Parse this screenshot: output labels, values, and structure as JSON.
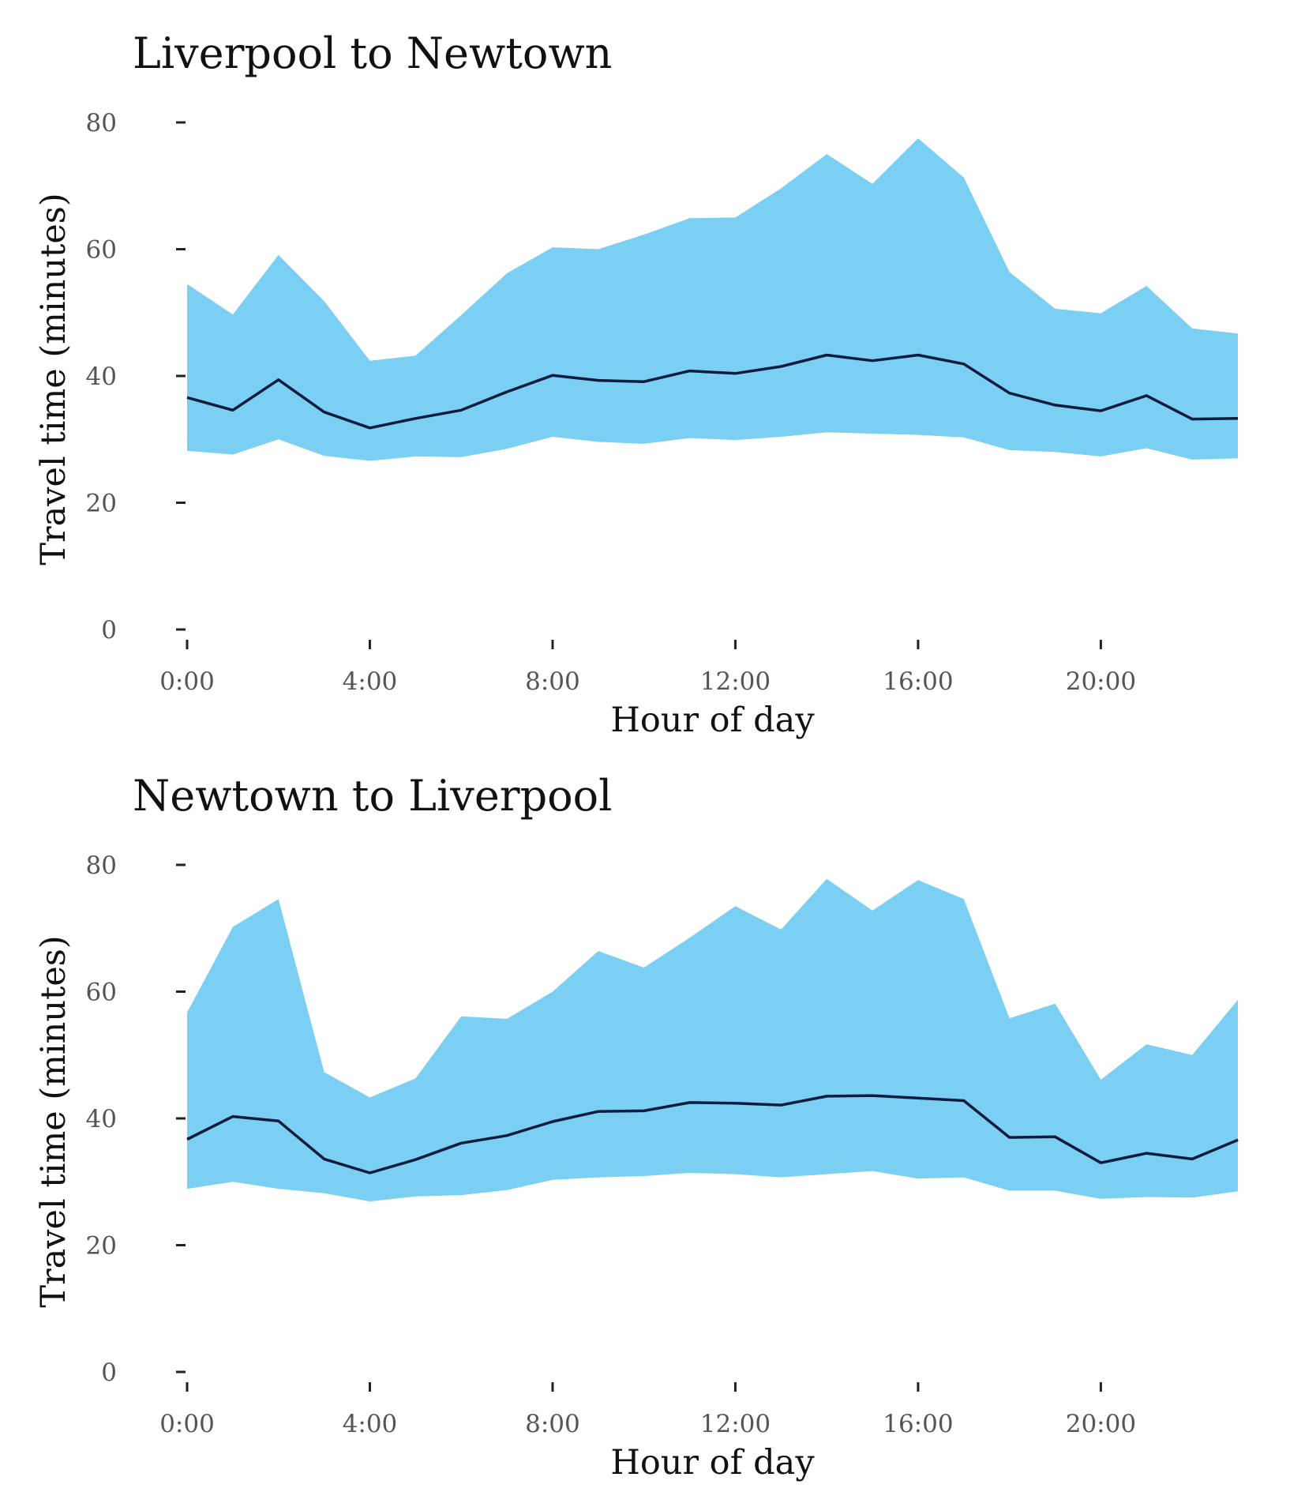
{
  "chart_data": [
    {
      "type": "area",
      "title": "Liverpool to Newtown",
      "xlabel": "Hour of day",
      "ylabel": "Travel time (minutes)",
      "xlim": [
        0,
        23
      ],
      "ylim": [
        0,
        80
      ],
      "x_ticks": [
        0,
        4,
        8,
        12,
        16,
        20
      ],
      "x_tick_labels": [
        "0:00",
        "4:00",
        "8:00",
        "12:00",
        "16:00",
        "20:00"
      ],
      "y_ticks": [
        0,
        20,
        40,
        60,
        80
      ],
      "y_tick_labels": [
        "0",
        "20",
        "40",
        "60",
        "80"
      ],
      "grid": false,
      "colors": {
        "band": "#7acff2",
        "line": "#0d1b3e"
      },
      "x": [
        0,
        1,
        2,
        3,
        4,
        5,
        6,
        7,
        8,
        9,
        10,
        11,
        12,
        13,
        14,
        15,
        16,
        17,
        18,
        19,
        20,
        21,
        22,
        23
      ],
      "series": [
        {
          "values": [
            36.6,
            34.6,
            39.4,
            34.3,
            31.8,
            33.3,
            34.6,
            37.5,
            40.1,
            39.3,
            39.1,
            40.8,
            40.4,
            41.5,
            43.3,
            42.4,
            43.3,
            41.9,
            37.3,
            35.4,
            34.5,
            36.9,
            33.2,
            33.3
          ]
        }
      ],
      "band_upper": [
        54.5,
        49.7,
        59.1,
        51.8,
        42.4,
        43.2,
        49.6,
        56.2,
        60.3,
        60.0,
        62.3,
        64.9,
        65.0,
        69.6,
        75.0,
        70.3,
        77.5,
        71.3,
        56.4,
        50.6,
        49.9,
        54.2,
        47.5,
        46.7
      ],
      "band_lower": [
        28.2,
        27.6,
        30.0,
        27.4,
        26.6,
        27.3,
        27.2,
        28.5,
        30.4,
        29.6,
        29.3,
        30.2,
        29.9,
        30.4,
        31.1,
        30.9,
        30.7,
        30.3,
        28.3,
        28.0,
        27.3,
        28.6,
        26.8,
        27.0
      ]
    },
    {
      "type": "area",
      "title": "Newtown to Liverpool",
      "xlabel": "Hour of day",
      "ylabel": "Travel time (minutes)",
      "xlim": [
        0,
        23
      ],
      "ylim": [
        0,
        80
      ],
      "x_ticks": [
        0,
        4,
        8,
        12,
        16,
        20
      ],
      "x_tick_labels": [
        "0:00",
        "4:00",
        "8:00",
        "12:00",
        "16:00",
        "20:00"
      ],
      "y_ticks": [
        0,
        20,
        40,
        60,
        80
      ],
      "y_tick_labels": [
        "0",
        "20",
        "40",
        "60",
        "80"
      ],
      "grid": false,
      "colors": {
        "band": "#7acff2",
        "line": "#0d1b3e"
      },
      "x": [
        0,
        1,
        2,
        3,
        4,
        5,
        6,
        7,
        8,
        9,
        10,
        11,
        12,
        13,
        14,
        15,
        16,
        17,
        18,
        19,
        20,
        21,
        22,
        23
      ],
      "series": [
        {
          "values": [
            36.7,
            40.3,
            39.6,
            33.6,
            31.4,
            33.5,
            36.1,
            37.3,
            39.5,
            41.1,
            41.2,
            42.5,
            42.4,
            42.1,
            43.5,
            43.6,
            43.2,
            42.8,
            37.0,
            37.1,
            33.0,
            34.5,
            33.6,
            36.6
          ]
        }
      ],
      "band_upper": [
        56.7,
        70.2,
        74.6,
        47.3,
        43.3,
        46.3,
        56.1,
        55.7,
        60.0,
        66.4,
        63.8,
        68.5,
        73.5,
        69.8,
        77.8,
        72.8,
        77.6,
        74.6,
        55.8,
        58.1,
        46.1,
        51.7,
        50.0,
        58.7
      ],
      "band_lower": [
        28.9,
        30.0,
        28.9,
        28.2,
        26.9,
        27.7,
        27.9,
        28.7,
        30.3,
        30.7,
        30.9,
        31.4,
        31.2,
        30.7,
        31.2,
        31.7,
        30.5,
        30.7,
        28.6,
        28.6,
        27.3,
        27.6,
        27.5,
        28.5
      ]
    }
  ]
}
